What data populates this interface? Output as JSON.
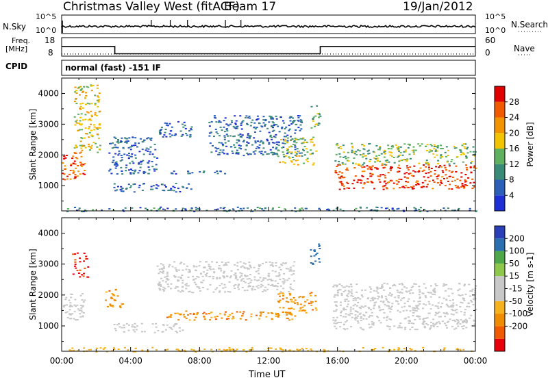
{
  "header": {
    "station": "Christmas Valley West (fitACF)",
    "beam": "Beam 17",
    "date": "19/Jan/2012"
  },
  "scan_info": {
    "nsky_label": "N.Sky",
    "nsky_ticks": [
      "10^5",
      "10^0"
    ],
    "nsearch_label": "N.Search",
    "nsearch_ticks": [
      "10^5",
      "10^0"
    ],
    "freq_label": "Freq.",
    "freq_unit": "[MHz]",
    "freq_ticks": [
      "18",
      "8"
    ],
    "nave_label": "Nave",
    "nave_ticks": [
      "60",
      "0"
    ],
    "cpid_label": "CPID",
    "cpid_text": "normal (fast) -151 IF",
    "freq_mhz": [
      {
        "start": "00:00",
        "end": "03:05",
        "value": 13.2
      },
      {
        "start": "03:05",
        "end": "15:00",
        "value": 9.3
      },
      {
        "start": "15:00",
        "end": "24:00",
        "value": 13.2
      }
    ],
    "nave_level": 7
  },
  "x_axis": {
    "label": "Time UT",
    "ticks": [
      "00:00",
      "04:00",
      "08:00",
      "12:00",
      "16:00",
      "20:00",
      "00:00"
    ],
    "range_hours": [
      0,
      24
    ]
  },
  "colors": {
    "power": [
      "#1f2fd6",
      "#2b5fb8",
      "#3a8a78",
      "#5fb05f",
      "#f2c400",
      "#f29400",
      "#f25a00",
      "#e00000"
    ],
    "velocity": [
      "#e8000a",
      "#f05a00",
      "#f08c00",
      "#f5b21c",
      "#c8c8c8",
      "#c8c8c8",
      "#8ec84a",
      "#4ea84a",
      "#2b6fb0",
      "#2a3fb8"
    ]
  },
  "chart_data": [
    {
      "type": "heatmap",
      "title": "Power",
      "ylabel": "Slant Range [km]",
      "yticks": [
        "1000",
        "2000",
        "3000",
        "4000"
      ],
      "ylim": [
        180,
        4500
      ],
      "xlim_hours": [
        0,
        24
      ],
      "colorbar": {
        "label": "Power [dB]",
        "ticks": [
          "4",
          "8",
          "12",
          "16",
          "20",
          "24",
          "28"
        ],
        "range": [
          0,
          32
        ]
      },
      "regions": [
        {
          "t": [
            0.0,
            1.3
          ],
          "r": [
            1200,
            2100
          ],
          "value": 26,
          "note": "early strong echoes"
        },
        {
          "t": [
            0.7,
            2.2
          ],
          "r": [
            2100,
            4300
          ],
          "value": 18,
          "note": "rising band"
        },
        {
          "t": [
            2.7,
            5.5
          ],
          "r": [
            1400,
            2600
          ],
          "value": 6
        },
        {
          "t": [
            3.0,
            7.5
          ],
          "r": [
            800,
            1100
          ],
          "value": 6
        },
        {
          "t": [
            5.5,
            7.5
          ],
          "r": [
            2600,
            3100
          ],
          "value": 6
        },
        {
          "t": [
            6.0,
            9.5
          ],
          "r": [
            1400,
            1500
          ],
          "value": 7
        },
        {
          "t": [
            8.5,
            14.0
          ],
          "r": [
            2000,
            3300
          ],
          "value": 7
        },
        {
          "t": [
            12.5,
            14.8
          ],
          "r": [
            1700,
            2600
          ],
          "value": 16
        },
        {
          "t": [
            14.4,
            15.0
          ],
          "r": [
            2900,
            3700
          ],
          "value": 14
        },
        {
          "t": [
            15.8,
            24.0
          ],
          "r": [
            900,
            1700
          ],
          "value": 28
        },
        {
          "t": [
            15.8,
            24.0
          ],
          "r": [
            1700,
            2400
          ],
          "value": 14
        },
        {
          "t": [
            0.0,
            24.0
          ],
          "r": [
            180,
            320
          ],
          "value": 8,
          "note": "ground scatter floor"
        }
      ]
    },
    {
      "type": "heatmap",
      "title": "Velocity",
      "ylabel": "Slant Range [km]",
      "yticks": [
        "1000",
        "2000",
        "3000",
        "4000"
      ],
      "ylim": [
        180,
        4500
      ],
      "xlim_hours": [
        0,
        24
      ],
      "colorbar": {
        "label": "Velocity [m s-1]",
        "ticks": [
          "200",
          "100",
          "50",
          "15",
          "-15",
          "-50",
          "-100",
          "-200"
        ],
        "range": [
          -250,
          250
        ]
      },
      "regions": [
        {
          "t": [
            0.0,
            1.3
          ],
          "r": [
            1200,
            2100
          ],
          "value": 0
        },
        {
          "t": [
            0.6,
            1.5
          ],
          "r": [
            2600,
            3400
          ],
          "value": -220
        },
        {
          "t": [
            2.5,
            3.5
          ],
          "r": [
            1600,
            2200
          ],
          "value": -60
        },
        {
          "t": [
            3.0,
            7.0
          ],
          "r": [
            800,
            1100
          ],
          "value": 0
        },
        {
          "t": [
            5.5,
            13.5
          ],
          "r": [
            2100,
            3100
          ],
          "value": 0
        },
        {
          "t": [
            6.0,
            13.5
          ],
          "r": [
            1200,
            1500
          ],
          "value": -70
        },
        {
          "t": [
            12.5,
            14.8
          ],
          "r": [
            1400,
            2100
          ],
          "value": -60
        },
        {
          "t": [
            14.4,
            15.0
          ],
          "r": [
            3000,
            3700
          ],
          "value": 150
        },
        {
          "t": [
            15.7,
            24.0
          ],
          "r": [
            900,
            2400
          ],
          "value": 0
        },
        {
          "t": [
            0.0,
            24.0
          ],
          "r": [
            180,
            320
          ],
          "value": -30
        }
      ]
    }
  ]
}
